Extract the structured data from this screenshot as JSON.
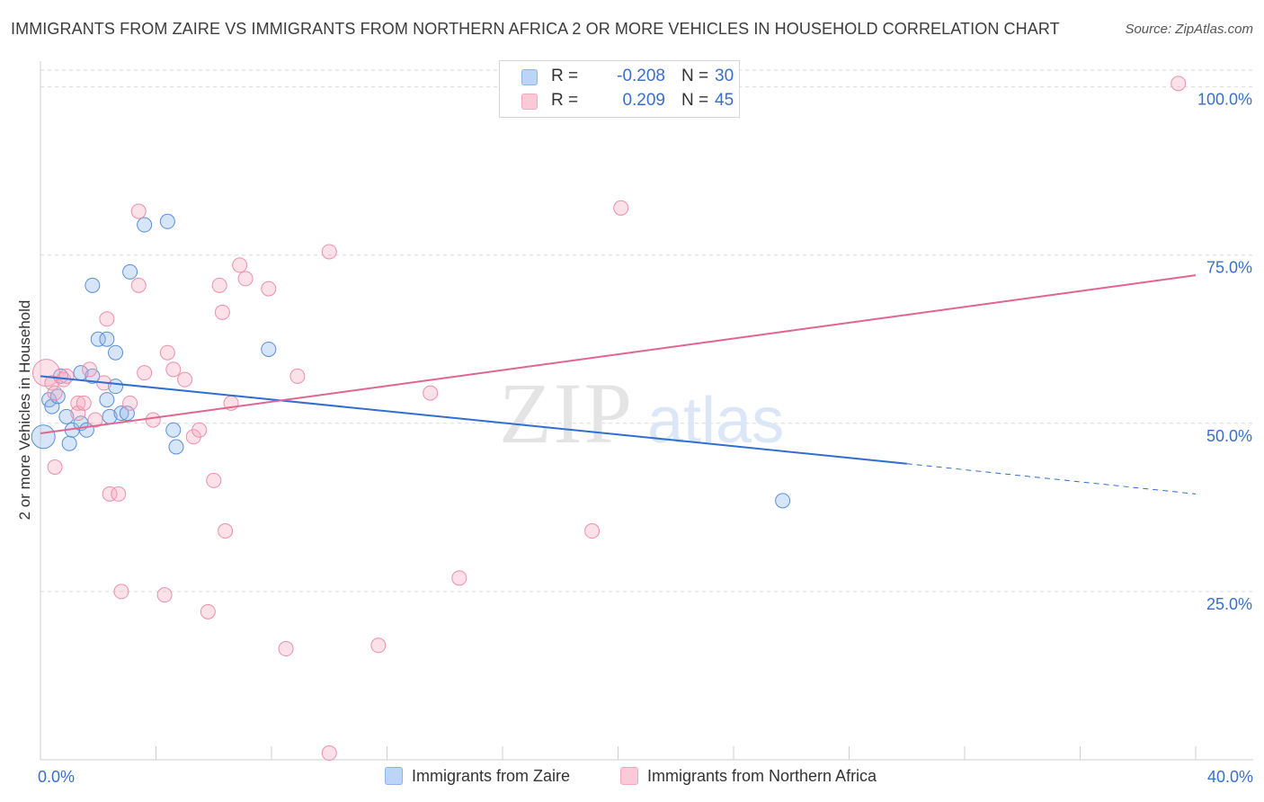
{
  "chart_data": {
    "type": "scatter",
    "title": "IMMIGRANTS FROM ZAIRE VS IMMIGRANTS FROM NORTHERN AFRICA 2 OR MORE VEHICLES IN HOUSEHOLD CORRELATION CHART",
    "source": "Source: ZipAtlas.com",
    "xlabel": "",
    "ylabel": "2 or more Vehicles in Household",
    "xlim": [
      0,
      40
    ],
    "ylim": [
      0,
      100
    ],
    "x_tick_labels": [
      "0.0%",
      "40.0%"
    ],
    "y_ticks": [
      {
        "value": 25,
        "label": "25.0%"
      },
      {
        "value": 50,
        "label": "50.0%"
      },
      {
        "value": 75,
        "label": "75.0%"
      },
      {
        "value": 100,
        "label": "100.0%"
      }
    ],
    "grid": true,
    "legend_position": "top-center",
    "series": [
      {
        "name": "Immigrants from Zaire",
        "color": "#8db4ea",
        "line_color": "#2f6fcf",
        "r_label": "R =",
        "r_value": "-0.208",
        "n_label": "N =",
        "n_value": "30",
        "trend": {
          "x0": 0,
          "y0": 57.0,
          "x1": 30.0,
          "y1": 44.0,
          "dash_to_x": 40.0,
          "dash_to_y": 39.5
        },
        "points": [
          [
            0.1,
            48.0,
            22
          ],
          [
            0.3,
            53.5,
            12
          ],
          [
            0.4,
            52.5,
            12
          ],
          [
            0.6,
            54.0,
            12
          ],
          [
            0.7,
            57.0,
            12
          ],
          [
            0.9,
            51.0,
            12
          ],
          [
            1.0,
            47.0,
            12
          ],
          [
            1.1,
            49.0,
            12
          ],
          [
            1.4,
            50.0,
            12
          ],
          [
            1.4,
            57.5,
            12
          ],
          [
            1.6,
            49.0,
            12
          ],
          [
            1.8,
            70.5,
            12
          ],
          [
            1.8,
            57.0,
            12
          ],
          [
            2.0,
            62.5,
            12
          ],
          [
            2.3,
            62.5,
            12
          ],
          [
            2.3,
            53.5,
            12
          ],
          [
            2.4,
            51.0,
            12
          ],
          [
            2.6,
            60.5,
            12
          ],
          [
            2.6,
            55.5,
            12
          ],
          [
            2.8,
            51.5,
            12
          ],
          [
            3.0,
            51.5,
            12
          ],
          [
            3.1,
            72.5,
            12
          ],
          [
            3.6,
            79.5,
            12
          ],
          [
            4.4,
            80.0,
            12
          ],
          [
            4.6,
            49.0,
            12
          ],
          [
            4.7,
            46.5,
            12
          ],
          [
            7.9,
            61.0,
            12
          ],
          [
            25.7,
            38.5,
            12
          ]
        ]
      },
      {
        "name": "Immigrants from Northern Africa",
        "color": "#f5a9bf",
        "line_color": "#e0668f",
        "r_label": "R =",
        "r_value": "0.209",
        "n_label": "N =",
        "n_value": "45",
        "trend": {
          "x0": 0,
          "y0": 48.5,
          "x1": 40.0,
          "y1": 72.0
        },
        "points": [
          [
            0.2,
            57.5,
            26
          ],
          [
            0.4,
            56.0,
            12
          ],
          [
            0.5,
            54.5,
            12
          ],
          [
            0.5,
            43.5,
            12
          ],
          [
            0.8,
            56.5,
            12
          ],
          [
            0.9,
            57.0,
            12
          ],
          [
            1.3,
            53.0,
            12
          ],
          [
            1.3,
            51.5,
            12
          ],
          [
            1.5,
            53.0,
            12
          ],
          [
            1.7,
            58.0,
            12
          ],
          [
            1.9,
            50.5,
            12
          ],
          [
            2.2,
            56.0,
            12
          ],
          [
            2.3,
            65.5,
            12
          ],
          [
            2.4,
            39.5,
            12
          ],
          [
            2.7,
            39.5,
            12
          ],
          [
            2.8,
            25.0,
            12
          ],
          [
            3.1,
            53.0,
            12
          ],
          [
            3.4,
            70.5,
            12
          ],
          [
            3.4,
            81.5,
            12
          ],
          [
            3.6,
            57.5,
            12
          ],
          [
            3.9,
            50.5,
            12
          ],
          [
            4.3,
            24.5,
            12
          ],
          [
            4.4,
            60.5,
            12
          ],
          [
            4.6,
            58.0,
            12
          ],
          [
            5.0,
            56.5,
            12
          ],
          [
            5.3,
            48.0,
            12
          ],
          [
            5.5,
            49.0,
            12
          ],
          [
            5.8,
            22.0,
            12
          ],
          [
            6.0,
            41.5,
            12
          ],
          [
            6.2,
            70.5,
            12
          ],
          [
            6.3,
            66.5,
            12
          ],
          [
            6.4,
            34.0,
            12
          ],
          [
            6.6,
            53.0,
            12
          ],
          [
            6.9,
            73.5,
            12
          ],
          [
            7.1,
            71.5,
            12
          ],
          [
            7.9,
            70.0,
            12
          ],
          [
            8.5,
            16.5,
            12
          ],
          [
            8.9,
            57.0,
            12
          ],
          [
            10.0,
            75.5,
            12
          ],
          [
            10.0,
            1.0,
            12
          ],
          [
            11.7,
            17.0,
            12
          ],
          [
            13.5,
            54.5,
            12
          ],
          [
            14.5,
            27.0,
            12
          ],
          [
            19.1,
            34.0,
            12
          ],
          [
            20.1,
            82.0,
            12
          ],
          [
            39.4,
            100.5,
            12
          ]
        ]
      }
    ]
  },
  "legend_top": {
    "rows": [
      {
        "swatch": "#bcd4f5",
        "swatch_border": "#8db4ea"
      },
      {
        "swatch": "#fbcad8",
        "swatch_border": "#f5a9bf"
      }
    ]
  },
  "watermark": {
    "zip": "ZIP",
    "atlas": "atlas"
  }
}
